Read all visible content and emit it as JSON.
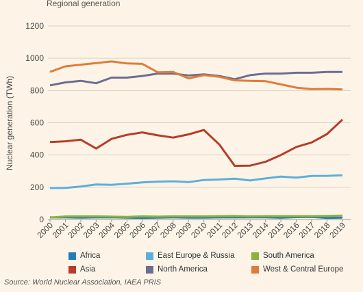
{
  "header": {
    "subtitle": "Regional generation"
  },
  "source": "Source: World Nuclear Association, IAEA PRIS",
  "chart_data": {
    "type": "line",
    "title": "",
    "subtitle": "Regional generation",
    "ylabel": "Nuclear generation (TWh)",
    "xlabel": "",
    "ylim": [
      0,
      1200
    ],
    "yticks": [
      "0",
      "200",
      "400",
      "600",
      "800",
      "1000",
      "1200"
    ],
    "grid": true,
    "legend_position": "bottom",
    "x": [
      "2000",
      "2001",
      "2002",
      "2003",
      "2004",
      "2005",
      "2006",
      "2007",
      "2008",
      "2009",
      "2010",
      "2011",
      "2012",
      "2013",
      "2014",
      "2015",
      "2016",
      "2017",
      "2018",
      "2019"
    ],
    "series": [
      {
        "name": "Africa",
        "color": "#1f7fb8",
        "values": [
          13,
          13,
          12,
          13,
          14,
          12,
          10,
          12,
          13,
          12,
          12,
          13,
          13,
          14,
          14,
          11,
          15,
          16,
          10,
          12
        ]
      },
      {
        "name": "East Europe & Russia",
        "color": "#5bb0db",
        "values": [
          195,
          196,
          205,
          217,
          215,
          222,
          230,
          235,
          237,
          232,
          245,
          248,
          253,
          242,
          255,
          266,
          260,
          270,
          271,
          274
        ]
      },
      {
        "name": "South America",
        "color": "#8fb23a",
        "values": [
          12,
          19,
          20,
          20,
          18,
          16,
          20,
          18,
          20,
          20,
          20,
          21,
          22,
          20,
          21,
          21,
          21,
          21,
          22,
          24
        ]
      },
      {
        "name": "Asia",
        "color": "#b73c2a",
        "values": [
          480,
          485,
          495,
          440,
          500,
          525,
          540,
          522,
          508,
          528,
          555,
          465,
          333,
          334,
          358,
          400,
          450,
          478,
          530,
          620
        ]
      },
      {
        "name": "North America",
        "color": "#6b6e91",
        "values": [
          832,
          850,
          860,
          845,
          880,
          880,
          890,
          905,
          905,
          893,
          900,
          890,
          870,
          895,
          905,
          905,
          910,
          910,
          915,
          915
        ]
      },
      {
        "name": "West & Central Europe",
        "color": "#e07c38",
        "values": [
          915,
          950,
          960,
          970,
          980,
          968,
          965,
          913,
          915,
          875,
          895,
          885,
          863,
          860,
          858,
          838,
          818,
          808,
          810,
          807
        ]
      }
    ]
  },
  "legend_order": [
    "Africa",
    "East Europe & Russia",
    "South America",
    "Asia",
    "North America",
    "West & Central Europe"
  ]
}
